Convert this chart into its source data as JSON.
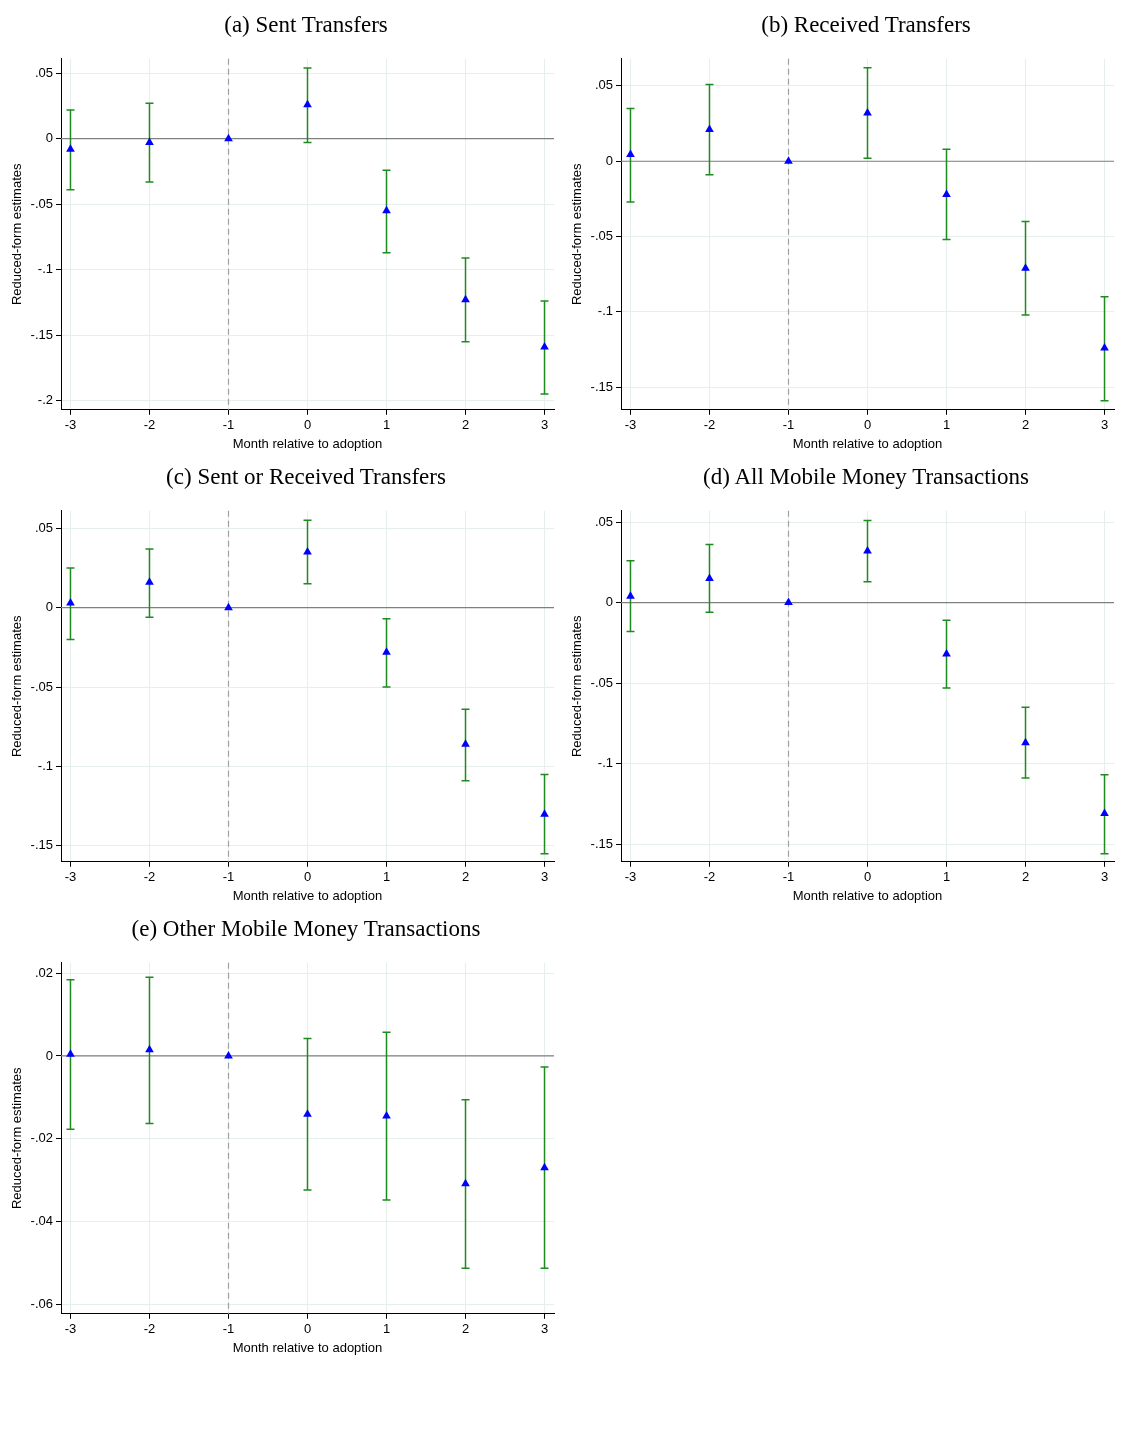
{
  "chart_data": [
    {
      "type": "scatter",
      "title": "(a) Sent Transfers",
      "xlabel": "Month relative to adoption",
      "ylabel": "Reduced-form estimates",
      "marker": "triangle",
      "grid": true,
      "legend": false,
      "xlim": [
        -3.12,
        3.12
      ],
      "xticks": [
        -3,
        -2,
        -1,
        0,
        1,
        2,
        3
      ],
      "ylim": [
        -0.207,
        0.061
      ],
      "yticks": [
        {
          "value": -0.2,
          "label": "-.2"
        },
        {
          "value": -0.15,
          "label": "-.15"
        },
        {
          "value": -0.1,
          "label": "-.1"
        },
        {
          "value": -0.05,
          "label": "-.05"
        },
        {
          "value": 0,
          "label": "0"
        },
        {
          "value": 0.05,
          "label": ".05"
        }
      ],
      "ref_lines": [
        {
          "axis": "y",
          "value": 0,
          "color": "#808080",
          "line_style": "solid"
        },
        {
          "axis": "x",
          "value": -1,
          "color": "#a0a0a0",
          "line_style": "dashed"
        }
      ],
      "series": [
        {
          "color": "#0000ff",
          "x": [
            -3,
            -2,
            -1,
            0,
            1,
            2,
            3
          ],
          "values": [
            -0.008,
            -0.003,
            0,
            0.026,
            -0.055,
            -0.123,
            -0.159
          ],
          "errors": [
            [
              -0.039,
              0.022
            ],
            [
              -0.033,
              0.027
            ],
            null,
            [
              -0.003,
              0.054
            ],
            [
              -0.087,
              -0.024
            ],
            [
              -0.155,
              -0.091
            ],
            [
              -0.195,
              -0.124
            ]
          ]
        }
      ]
    },
    {
      "type": "scatter",
      "title": "(b)  Received Transfers",
      "xlabel": "Month relative to adoption",
      "ylabel": "Reduced-form estimates",
      "marker": "triangle",
      "grid": true,
      "legend": false,
      "xlim": [
        -3.12,
        3.12
      ],
      "xticks": [
        -3,
        -2,
        -1,
        0,
        1,
        2,
        3
      ],
      "ylim": [
        -0.165,
        0.068
      ],
      "yticks": [
        {
          "value": -0.15,
          "label": "-.15"
        },
        {
          "value": -0.1,
          "label": "-.1"
        },
        {
          "value": -0.05,
          "label": "-.05"
        },
        {
          "value": 0,
          "label": "0"
        },
        {
          "value": 0.05,
          "label": ".05"
        }
      ],
      "ref_lines": [
        {
          "axis": "y",
          "value": 0,
          "color": "#808080",
          "line_style": "solid"
        },
        {
          "axis": "x",
          "value": -1,
          "color": "#a0a0a0",
          "line_style": "dashed"
        }
      ],
      "series": [
        {
          "color": "#0000ff",
          "x": [
            -3,
            -2,
            -1,
            0,
            1,
            2,
            3
          ],
          "values": [
            0.0045,
            0.021,
            0,
            0.032,
            -0.022,
            -0.071,
            -0.124
          ],
          "errors": [
            [
              -0.027,
              0.035
            ],
            [
              -0.009,
              0.051
            ],
            null,
            [
              0.002,
              0.062
            ],
            [
              -0.052,
              0.008
            ],
            [
              -0.102,
              -0.04
            ],
            [
              -0.159,
              -0.09
            ]
          ]
        }
      ]
    },
    {
      "type": "scatter",
      "title": "(c) Sent or Received Transfers",
      "xlabel": "Month relative to adoption",
      "ylabel": "Reduced-form estimates",
      "marker": "triangle",
      "grid": true,
      "legend": false,
      "xlim": [
        -3.12,
        3.12
      ],
      "xticks": [
        -3,
        -2,
        -1,
        0,
        1,
        2,
        3
      ],
      "ylim": [
        -0.16,
        0.061
      ],
      "yticks": [
        {
          "value": -0.15,
          "label": "-.15"
        },
        {
          "value": -0.1,
          "label": "-.1"
        },
        {
          "value": -0.05,
          "label": "-.05"
        },
        {
          "value": 0,
          "label": "0"
        },
        {
          "value": 0.05,
          "label": ".05"
        }
      ],
      "ref_lines": [
        {
          "axis": "y",
          "value": 0,
          "color": "#808080",
          "line_style": "solid"
        },
        {
          "axis": "x",
          "value": -1,
          "color": "#a0a0a0",
          "line_style": "dashed"
        }
      ],
      "series": [
        {
          "color": "#0000ff",
          "x": [
            -3,
            -2,
            -1,
            0,
            1,
            2,
            3
          ],
          "values": [
            0.003,
            0.016,
            0,
            0.035,
            -0.028,
            -0.086,
            -0.13
          ],
          "errors": [
            [
              -0.02,
              0.025
            ],
            [
              -0.006,
              0.037
            ],
            null,
            [
              0.015,
              0.055
            ],
            [
              -0.05,
              -0.007
            ],
            [
              -0.109,
              -0.064
            ],
            [
              -0.155,
              -0.105
            ]
          ]
        }
      ]
    },
    {
      "type": "scatter",
      "title": "(d)  All Mobile Money Transactions",
      "xlabel": "Month relative to adoption",
      "ylabel": "Reduced-form estimates",
      "marker": "triangle",
      "grid": true,
      "legend": false,
      "xlim": [
        -3.12,
        3.12
      ],
      "xticks": [
        -3,
        -2,
        -1,
        0,
        1,
        2,
        3
      ],
      "ylim": [
        -0.161,
        0.057
      ],
      "yticks": [
        {
          "value": -0.15,
          "label": "-.15"
        },
        {
          "value": -0.1,
          "label": "-.1"
        },
        {
          "value": -0.05,
          "label": "-.05"
        },
        {
          "value": 0,
          "label": "0"
        },
        {
          "value": 0.05,
          "label": ".05"
        }
      ],
      "ref_lines": [
        {
          "axis": "y",
          "value": 0,
          "color": "#808080",
          "line_style": "solid"
        },
        {
          "axis": "x",
          "value": -1,
          "color": "#a0a0a0",
          "line_style": "dashed"
        }
      ],
      "series": [
        {
          "color": "#0000ff",
          "x": [
            -3,
            -2,
            -1,
            0,
            1,
            2,
            3
          ],
          "values": [
            0.004,
            0.015,
            0,
            0.032,
            -0.032,
            -0.087,
            -0.131
          ],
          "errors": [
            [
              -0.018,
              0.026
            ],
            [
              -0.006,
              0.036
            ],
            null,
            [
              0.013,
              0.051
            ],
            [
              -0.053,
              -0.011
            ],
            [
              -0.109,
              -0.065
            ],
            [
              -0.156,
              -0.107
            ]
          ]
        }
      ]
    },
    {
      "type": "scatter",
      "title": "(e)  Other Mobile Money Transactions",
      "xlabel": "Month relative to adoption",
      "ylabel": "Reduced-form estimates",
      "marker": "triangle",
      "grid": true,
      "legend": false,
      "xlim": [
        -3.12,
        3.12
      ],
      "xticks": [
        -3,
        -2,
        -1,
        0,
        1,
        2,
        3
      ],
      "ylim": [
        -0.0623,
        0.0225
      ],
      "yticks": [
        {
          "value": -0.06,
          "label": "-.06"
        },
        {
          "value": -0.04,
          "label": "-.04"
        },
        {
          "value": -0.02,
          "label": "-.02"
        },
        {
          "value": 0,
          "label": "0"
        },
        {
          "value": 0.02,
          "label": ".02"
        }
      ],
      "ref_lines": [
        {
          "axis": "y",
          "value": 0,
          "color": "#808080",
          "line_style": "solid"
        },
        {
          "axis": "x",
          "value": -1,
          "color": "#a0a0a0",
          "line_style": "dashed"
        }
      ],
      "series": [
        {
          "color": "#0000ff",
          "x": [
            -3,
            -2,
            -1,
            0,
            1,
            2,
            3
          ],
          "values": [
            0.0004,
            0.0015,
            0,
            -0.0141,
            -0.0145,
            -0.0309,
            -0.027
          ],
          "errors": [
            [
              -0.0177,
              0.0184
            ],
            [
              -0.0163,
              0.019
            ],
            null,
            [
              -0.0324,
              0.0042
            ],
            [
              -0.0348,
              0.0057
            ],
            [
              -0.0513,
              -0.0106
            ],
            [
              -0.0513,
              -0.0027
            ]
          ]
        }
      ]
    }
  ]
}
